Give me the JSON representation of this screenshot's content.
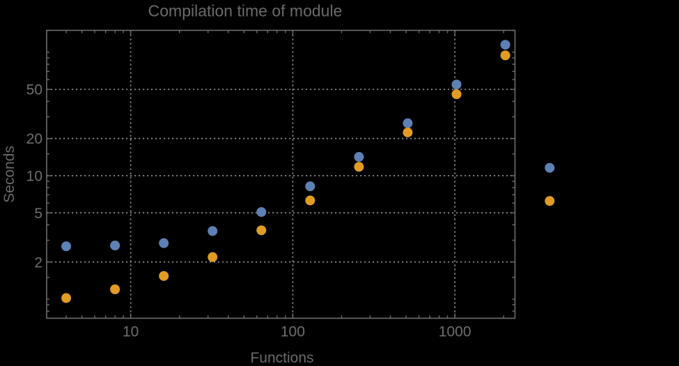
{
  "chart_data": {
    "type": "scatter",
    "title": "Compilation time of module",
    "xlabel": "Functions",
    "ylabel": "Seconds",
    "xscale": "log",
    "yscale": "log",
    "xlim": [
      3.03,
      2350
    ],
    "ylim": [
      0.7,
      150.5
    ],
    "grid": "dotted",
    "frame": true,
    "legend_position": "right-outside",
    "legend_labels_visible": false,
    "x_major_ticks": [
      10,
      100,
      1000
    ],
    "x_minor_ticks": [
      4,
      5,
      6,
      7,
      8,
      9,
      20,
      30,
      40,
      50,
      60,
      70,
      80,
      90,
      200,
      300,
      400,
      500,
      600,
      700,
      800,
      900,
      2000
    ],
    "y_major_ticks": [
      2,
      5,
      10,
      20,
      50
    ],
    "y_minor_ticks": [
      0.8,
      0.9,
      1,
      1.5,
      3,
      4,
      6,
      7,
      8,
      9,
      15,
      30,
      40,
      60,
      70,
      80,
      90,
      100,
      150
    ],
    "x": [
      4,
      8,
      16,
      32,
      64,
      128,
      256,
      512,
      1024,
      2048
    ],
    "series": [
      {
        "name": "",
        "color": "#5e81b5",
        "values": [
          2.68,
          2.72,
          2.84,
          3.56,
          5.08,
          8.2,
          14.2,
          26.6,
          54.8,
          115
        ]
      },
      {
        "name": "",
        "color": "#e19c24",
        "values": [
          1.02,
          1.2,
          1.54,
          2.19,
          3.61,
          6.3,
          11.8,
          22.4,
          45.7,
          94.4
        ]
      }
    ]
  },
  "colors": {
    "background": "#000000",
    "frame": "#6e6e6e",
    "grid": "#878787",
    "text": "#6a6a6a",
    "series1": "#5e81b5",
    "series2": "#e19c24"
  }
}
